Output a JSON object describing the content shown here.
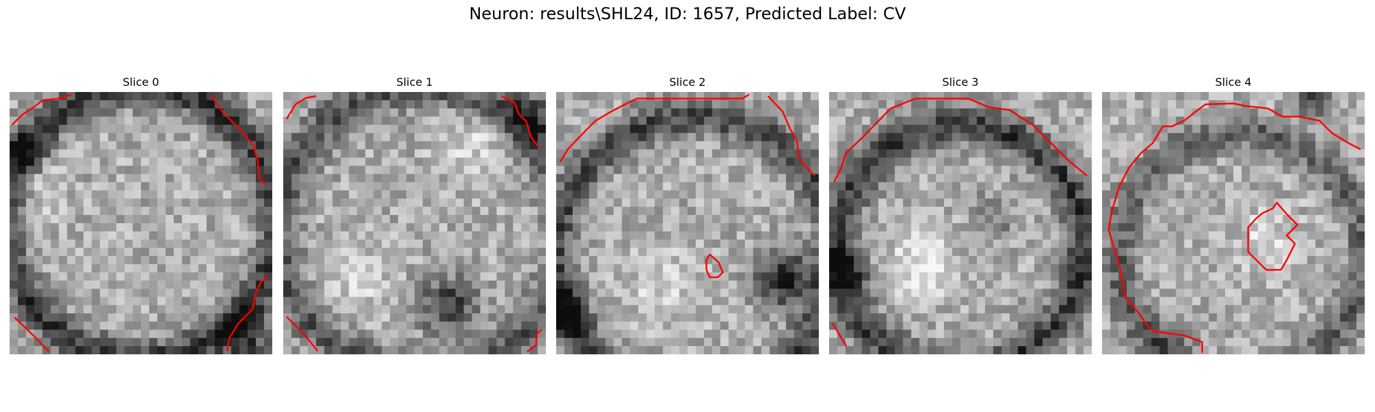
{
  "figure": {
    "title": "Neuron: results\\SHL24, ID: 1657, Predicted Label: CV",
    "contour_color": "#ff0000",
    "colormap": "gray",
    "panels": [
      {
        "title": "Slice 0"
      },
      {
        "title": "Slice 1"
      },
      {
        "title": "Slice 2"
      },
      {
        "title": "Slice 3"
      },
      {
        "title": "Slice 4"
      }
    ]
  }
}
